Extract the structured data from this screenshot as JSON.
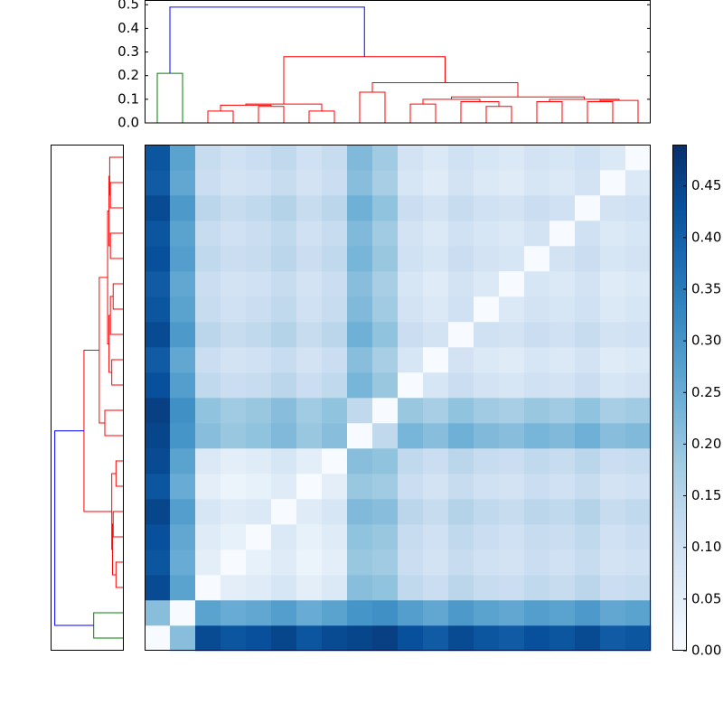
{
  "chart_data": {
    "type": "clustermap",
    "colormap": "Blues",
    "clim": [
      0,
      0.49
    ],
    "colorbar_ticks": [
      {
        "value": 0,
        "label": "0.00"
      },
      {
        "value": 0.05,
        "label": "0.05"
      },
      {
        "value": 0.1,
        "label": "0.10"
      },
      {
        "value": 0.15,
        "label": "0.15"
      },
      {
        "value": 0.2,
        "label": "0.20"
      },
      {
        "value": 0.25,
        "label": "0.25"
      },
      {
        "value": 0.3,
        "label": "0.30"
      },
      {
        "value": 0.35,
        "label": "0.35"
      },
      {
        "value": 0.4,
        "label": "0.40"
      },
      {
        "value": 0.45,
        "label": "0.45"
      }
    ],
    "dendrogram_xlim": [
      0,
      200
    ],
    "dendrogram_ylim": [
      0,
      0.52
    ],
    "dendrogram_yticks": [
      {
        "value": 0,
        "label": "0.0"
      },
      0.1,
      0.2,
      0.3,
      0.4,
      0.5
    ],
    "dendrogram": {
      "icoord": [
        [
          5,
          5,
          15,
          15
        ],
        [
          25,
          25,
          35,
          35
        ],
        [
          65,
          65,
          75,
          75
        ],
        [
          45,
          45,
          55,
          55
        ],
        [
          30,
          30,
          50,
          50
        ],
        [
          40,
          40,
          70,
          70
        ],
        [
          85,
          85,
          95,
          95
        ],
        [
          135,
          135,
          145,
          145
        ],
        [
          105,
          105,
          115,
          115
        ],
        [
          125,
          125,
          140,
          140
        ],
        [
          110,
          110,
          132.5,
          132.5
        ],
        [
          155,
          155,
          165,
          165
        ],
        [
          175,
          175,
          185,
          185
        ],
        [
          180,
          180,
          195,
          195
        ],
        [
          160,
          160,
          187.5,
          187.5
        ],
        [
          121.25,
          121.25,
          173.75,
          173.75
        ],
        [
          90,
          90,
          147.5,
          147.5
        ],
        [
          55,
          55,
          118.75,
          118.75
        ],
        [
          10,
          10,
          86.875,
          86.875
        ]
      ],
      "dcoord": [
        [
          0,
          0.21,
          0.21,
          0
        ],
        [
          0,
          0.05,
          0.05,
          0
        ],
        [
          0,
          0.05,
          0.05,
          0
        ],
        [
          0,
          0.07,
          0.07,
          0
        ],
        [
          0.05,
          0.075,
          0.075,
          0.07
        ],
        [
          0.075,
          0.08,
          0.08,
          0.05
        ],
        [
          0,
          0.13,
          0.13,
          0
        ],
        [
          0,
          0.07,
          0.07,
          0
        ],
        [
          0,
          0.08,
          0.08,
          0
        ],
        [
          0,
          0.09,
          0.09,
          0.07
        ],
        [
          0.08,
          0.1,
          0.1,
          0.09
        ],
        [
          0,
          0.09,
          0.09,
          0
        ],
        [
          0,
          0.09,
          0.09,
          0
        ],
        [
          0.09,
          0.095,
          0.095,
          0
        ],
        [
          0.09,
          0.1,
          0.1,
          0.095
        ],
        [
          0.1,
          0.11,
          0.11,
          0.1
        ],
        [
          0.13,
          0.17,
          0.17,
          0.11
        ],
        [
          0.08,
          0.28,
          0.28,
          0.17
        ],
        [
          0.21,
          0.49,
          0.49,
          0.28
        ]
      ],
      "colors": [
        "#008000",
        "#ff0000",
        "#ff0000",
        "#ff0000",
        "#ff0000",
        "#ff0000",
        "#ff0000",
        "#ff0000",
        "#ff0000",
        "#ff0000",
        "#ff0000",
        "#ff0000",
        "#ff0000",
        "#ff0000",
        "#ff0000",
        "#ff0000",
        "#ff0000",
        "#ff0000",
        "#0000ff"
      ]
    },
    "matrix": [
      [
        0,
        0.21,
        0.44,
        0.42,
        0.43,
        0.45,
        0.42,
        0.44,
        0.45,
        0.46,
        0.43,
        0.41,
        0.44,
        0.42,
        0.41,
        0.43,
        0.42,
        0.44,
        0.41,
        0.42
      ],
      [
        0.21,
        0,
        0.27,
        0.25,
        0.26,
        0.28,
        0.25,
        0.27,
        0.3,
        0.31,
        0.28,
        0.26,
        0.29,
        0.27,
        0.26,
        0.28,
        0.27,
        0.29,
        0.26,
        0.27
      ],
      [
        0.44,
        0.27,
        0,
        0.05,
        0.06,
        0.08,
        0.05,
        0.07,
        0.21,
        0.2,
        0.13,
        0.11,
        0.14,
        0.12,
        0.11,
        0.13,
        0.12,
        0.14,
        0.11,
        0.12
      ],
      [
        0.42,
        0.25,
        0.05,
        0,
        0.04,
        0.06,
        0.03,
        0.05,
        0.19,
        0.18,
        0.11,
        0.09,
        0.12,
        0.1,
        0.09,
        0.11,
        0.1,
        0.12,
        0.09,
        0.1
      ],
      [
        0.43,
        0.26,
        0.06,
        0.04,
        0,
        0.07,
        0.04,
        0.06,
        0.2,
        0.19,
        0.12,
        0.1,
        0.13,
        0.11,
        0.1,
        0.12,
        0.11,
        0.13,
        0.1,
        0.11
      ],
      [
        0.45,
        0.28,
        0.08,
        0.06,
        0.07,
        0,
        0.06,
        0.08,
        0.22,
        0.21,
        0.14,
        0.12,
        0.15,
        0.13,
        0.12,
        0.14,
        0.13,
        0.15,
        0.12,
        0.13
      ],
      [
        0.42,
        0.25,
        0.05,
        0.03,
        0.04,
        0.06,
        0,
        0.05,
        0.19,
        0.18,
        0.11,
        0.09,
        0.12,
        0.1,
        0.09,
        0.11,
        0.1,
        0.12,
        0.09,
        0.1
      ],
      [
        0.44,
        0.27,
        0.07,
        0.05,
        0.06,
        0.08,
        0.05,
        0,
        0.21,
        0.2,
        0.13,
        0.11,
        0.14,
        0.12,
        0.11,
        0.13,
        0.12,
        0.14,
        0.11,
        0.12
      ],
      [
        0.45,
        0.3,
        0.21,
        0.19,
        0.2,
        0.22,
        0.19,
        0.21,
        0,
        0.13,
        0.23,
        0.21,
        0.24,
        0.22,
        0.21,
        0.23,
        0.22,
        0.24,
        0.21,
        0.22
      ],
      [
        0.46,
        0.31,
        0.2,
        0.18,
        0.19,
        0.21,
        0.18,
        0.2,
        0.13,
        0,
        0.19,
        0.17,
        0.2,
        0.18,
        0.17,
        0.19,
        0.18,
        0.2,
        0.17,
        0.18
      ],
      [
        0.43,
        0.28,
        0.13,
        0.11,
        0.12,
        0.14,
        0.11,
        0.13,
        0.23,
        0.19,
        0,
        0.08,
        0.11,
        0.09,
        0.08,
        0.1,
        0.09,
        0.11,
        0.08,
        0.09
      ],
      [
        0.41,
        0.26,
        0.11,
        0.09,
        0.1,
        0.12,
        0.09,
        0.11,
        0.21,
        0.17,
        0.08,
        0,
        0.09,
        0.07,
        0.06,
        0.08,
        0.07,
        0.09,
        0.06,
        0.07
      ],
      [
        0.44,
        0.29,
        0.14,
        0.12,
        0.13,
        0.15,
        0.12,
        0.14,
        0.24,
        0.2,
        0.11,
        0.09,
        0,
        0.1,
        0.09,
        0.11,
        0.1,
        0.12,
        0.09,
        0.1
      ],
      [
        0.42,
        0.27,
        0.12,
        0.1,
        0.11,
        0.13,
        0.1,
        0.12,
        0.22,
        0.18,
        0.09,
        0.07,
        0.1,
        0,
        0.07,
        0.09,
        0.08,
        0.1,
        0.07,
        0.08
      ],
      [
        0.41,
        0.26,
        0.11,
        0.09,
        0.1,
        0.12,
        0.09,
        0.11,
        0.21,
        0.17,
        0.08,
        0.06,
        0.09,
        0.07,
        0,
        0.08,
        0.07,
        0.09,
        0.06,
        0.07
      ],
      [
        0.43,
        0.28,
        0.13,
        0.11,
        0.12,
        0.14,
        0.11,
        0.13,
        0.23,
        0.19,
        0.1,
        0.08,
        0.11,
        0.09,
        0.08,
        0,
        0.09,
        0.11,
        0.08,
        0.09
      ],
      [
        0.42,
        0.27,
        0.12,
        0.1,
        0.11,
        0.13,
        0.1,
        0.12,
        0.22,
        0.18,
        0.09,
        0.07,
        0.1,
        0.08,
        0.07,
        0.09,
        0,
        0.1,
        0.07,
        0.08
      ],
      [
        0.44,
        0.29,
        0.14,
        0.12,
        0.13,
        0.15,
        0.12,
        0.14,
        0.24,
        0.2,
        0.11,
        0.09,
        0.12,
        0.1,
        0.09,
        0.11,
        0.1,
        0,
        0.09,
        0.1
      ],
      [
        0.41,
        0.26,
        0.11,
        0.09,
        0.1,
        0.12,
        0.09,
        0.11,
        0.21,
        0.17,
        0.08,
        0.06,
        0.09,
        0.07,
        0.06,
        0.08,
        0.07,
        0.09,
        0,
        0.07
      ],
      [
        0.42,
        0.27,
        0.12,
        0.1,
        0.11,
        0.13,
        0.1,
        0.12,
        0.22,
        0.18,
        0.09,
        0.07,
        0.1,
        0.08,
        0.07,
        0.09,
        0.08,
        0.1,
        0.07,
        0
      ]
    ]
  }
}
